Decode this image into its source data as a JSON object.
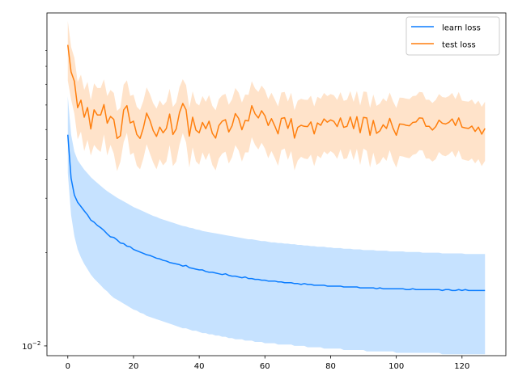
{
  "chart_data": {
    "type": "line",
    "yscale": "log",
    "xlim": [
      -6.35,
      133.35
    ],
    "ylim": [
      0.0093,
      0.119
    ],
    "x_ticks": [
      0,
      20,
      40,
      60,
      80,
      100,
      120
    ],
    "y_major_ticks": [
      {
        "value": 0.01,
        "label": "10",
        "exponent": "−2"
      }
    ],
    "y_minor_ticks": [
      0.02,
      0.03,
      0.04,
      0.05,
      0.06,
      0.07,
      0.08,
      0.09
    ],
    "legend_position": "top-right",
    "x": [
      0,
      1,
      2,
      3,
      4,
      5,
      6,
      7,
      8,
      9,
      10,
      11,
      12,
      13,
      14,
      15,
      16,
      17,
      18,
      19,
      20,
      21,
      22,
      23,
      24,
      25,
      26,
      27,
      28,
      29,
      30,
      31,
      32,
      33,
      34,
      35,
      36,
      37,
      38,
      39,
      40,
      41,
      42,
      43,
      44,
      45,
      46,
      47,
      48,
      49,
      50,
      51,
      52,
      53,
      54,
      55,
      56,
      57,
      58,
      59,
      60,
      61,
      62,
      63,
      64,
      65,
      66,
      67,
      68,
      69,
      70,
      71,
      72,
      73,
      74,
      75,
      76,
      77,
      78,
      79,
      80,
      81,
      82,
      83,
      84,
      85,
      86,
      87,
      88,
      89,
      90,
      91,
      92,
      93,
      94,
      95,
      96,
      97,
      98,
      99,
      100,
      101,
      102,
      103,
      104,
      105,
      106,
      107,
      108,
      109,
      110,
      111,
      112,
      113,
      114,
      115,
      116,
      117,
      118,
      119,
      120,
      121,
      122,
      123,
      124,
      125,
      126,
      127
    ],
    "series": [
      {
        "name": "learn loss",
        "color": "#0a7cff",
        "band_color": "#b3d8ff",
        "values": [
          0.0481,
          0.0348,
          0.0307,
          0.0291,
          0.0282,
          0.0273,
          0.0265,
          0.0255,
          0.0251,
          0.0245,
          0.0241,
          0.0236,
          0.023,
          0.0225,
          0.0224,
          0.022,
          0.0215,
          0.0214,
          0.021,
          0.0209,
          0.0205,
          0.0203,
          0.0201,
          0.0199,
          0.0197,
          0.0196,
          0.0194,
          0.0192,
          0.0191,
          0.0189,
          0.0188,
          0.0186,
          0.0185,
          0.0184,
          0.0183,
          0.0181,
          0.0182,
          0.0179,
          0.0178,
          0.0177,
          0.0176,
          0.0176,
          0.0174,
          0.0173,
          0.0173,
          0.0172,
          0.0171,
          0.017,
          0.0171,
          0.0169,
          0.0168,
          0.0168,
          0.0167,
          0.0166,
          0.0167,
          0.0165,
          0.0165,
          0.0164,
          0.0164,
          0.0163,
          0.0163,
          0.0162,
          0.0162,
          0.0162,
          0.0161,
          0.0161,
          0.016,
          0.016,
          0.016,
          0.0159,
          0.0159,
          0.0158,
          0.0159,
          0.0158,
          0.0158,
          0.0157,
          0.0157,
          0.0157,
          0.0157,
          0.0156,
          0.0156,
          0.0156,
          0.0156,
          0.0156,
          0.0155,
          0.0155,
          0.0155,
          0.0155,
          0.0155,
          0.0154,
          0.0154,
          0.0154,
          0.0154,
          0.0154,
          0.0153,
          0.0154,
          0.0153,
          0.0153,
          0.0153,
          0.0153,
          0.0153,
          0.0153,
          0.0153,
          0.0152,
          0.0152,
          0.0153,
          0.0152,
          0.0152,
          0.0152,
          0.0152,
          0.0152,
          0.0152,
          0.0152,
          0.0152,
          0.0151,
          0.0152,
          0.0152,
          0.0151,
          0.0151,
          0.0152,
          0.0151,
          0.0152,
          0.0151,
          0.0151,
          0.0151,
          0.0151,
          0.0151,
          0.0151
        ],
        "band_lower": [
          0.0362,
          0.0265,
          0.0226,
          0.0205,
          0.0193,
          0.0184,
          0.0177,
          0.017,
          0.0165,
          0.0161,
          0.0157,
          0.0153,
          0.015,
          0.0146,
          0.0143,
          0.0141,
          0.0139,
          0.0137,
          0.0135,
          0.0133,
          0.0131,
          0.013,
          0.0128,
          0.0127,
          0.0125,
          0.0124,
          0.0123,
          0.0122,
          0.0121,
          0.012,
          0.0119,
          0.0118,
          0.0117,
          0.0116,
          0.0115,
          0.0114,
          0.0114,
          0.0113,
          0.0112,
          0.0112,
          0.0111,
          0.011,
          0.011,
          0.0109,
          0.0109,
          0.0108,
          0.0108,
          0.0107,
          0.0107,
          0.0106,
          0.0106,
          0.0105,
          0.0105,
          0.0105,
          0.0104,
          0.0104,
          0.0104,
          0.0103,
          0.0103,
          0.0103,
          0.0102,
          0.0102,
          0.0102,
          0.0102,
          0.0101,
          0.0101,
          0.0101,
          0.0101,
          0.0101,
          0.01,
          0.01,
          0.01,
          0.01,
          0.0099,
          0.0099,
          0.0099,
          0.0099,
          0.0099,
          0.0098,
          0.0098,
          0.0098,
          0.0098,
          0.0098,
          0.0098,
          0.0097,
          0.0097,
          0.0097,
          0.0097,
          0.0097,
          0.0097,
          0.0097,
          0.0096,
          0.0096,
          0.0096,
          0.0096,
          0.0096,
          0.0096,
          0.0096,
          0.0096,
          0.0096,
          0.0095,
          0.0095,
          0.0095,
          0.0095,
          0.0095,
          0.0095,
          0.0095,
          0.0095,
          0.0095,
          0.0095,
          0.0095,
          0.0095,
          0.0095,
          0.0095,
          0.0094,
          0.0094,
          0.0094,
          0.0094,
          0.0094,
          0.0094,
          0.0094,
          0.0094,
          0.0094,
          0.0094,
          0.0094,
          0.0094,
          0.0094,
          0.0094
        ],
        "band_upper": [
          0.0639,
          0.0482,
          0.0424,
          0.0398,
          0.0384,
          0.0371,
          0.0361,
          0.0351,
          0.0343,
          0.0336,
          0.0329,
          0.0322,
          0.0316,
          0.0311,
          0.0306,
          0.0301,
          0.0297,
          0.0293,
          0.0289,
          0.0285,
          0.0281,
          0.0278,
          0.0275,
          0.0272,
          0.0269,
          0.0266,
          0.0263,
          0.0261,
          0.0258,
          0.0256,
          0.0254,
          0.0252,
          0.025,
          0.0248,
          0.0246,
          0.0244,
          0.0243,
          0.0241,
          0.024,
          0.0238,
          0.0237,
          0.0235,
          0.0234,
          0.0233,
          0.0232,
          0.0231,
          0.023,
          0.0229,
          0.0228,
          0.0227,
          0.0226,
          0.0225,
          0.0224,
          0.0223,
          0.0222,
          0.0221,
          0.0221,
          0.022,
          0.0219,
          0.0218,
          0.0218,
          0.0217,
          0.0216,
          0.0216,
          0.0215,
          0.0215,
          0.0214,
          0.0214,
          0.0213,
          0.0213,
          0.0212,
          0.0212,
          0.0211,
          0.0211,
          0.021,
          0.021,
          0.0209,
          0.0209,
          0.0209,
          0.0208,
          0.0208,
          0.0207,
          0.0207,
          0.0207,
          0.0206,
          0.0206,
          0.0206,
          0.0205,
          0.0205,
          0.0205,
          0.0204,
          0.0204,
          0.0204,
          0.0204,
          0.0203,
          0.0203,
          0.0203,
          0.0203,
          0.0202,
          0.0202,
          0.0202,
          0.0202,
          0.0202,
          0.0201,
          0.0201,
          0.0201,
          0.0201,
          0.0201,
          0.02,
          0.02,
          0.02,
          0.02,
          0.02,
          0.02,
          0.0199,
          0.0199,
          0.0199,
          0.0199,
          0.0199,
          0.0199,
          0.0199,
          0.0198,
          0.0198,
          0.0198,
          0.0198,
          0.0198,
          0.0198,
          0.0198
        ]
      },
      {
        "name": "test loss",
        "color": "#ff7f0e",
        "band_color": "#ffd9b8",
        "values": [
          0.0938,
          0.0767,
          0.0716,
          0.0588,
          0.0622,
          0.0548,
          0.0589,
          0.0502,
          0.0579,
          0.0557,
          0.0557,
          0.0602,
          0.0524,
          0.0551,
          0.0539,
          0.0468,
          0.0477,
          0.0578,
          0.0597,
          0.0525,
          0.0532,
          0.0482,
          0.0468,
          0.0506,
          0.0565,
          0.0535,
          0.0496,
          0.0475,
          0.0509,
          0.0488,
          0.0504,
          0.0561,
          0.0482,
          0.0502,
          0.0567,
          0.0607,
          0.0579,
          0.0476,
          0.0548,
          0.0498,
          0.0488,
          0.0527,
          0.0503,
          0.0532,
          0.0486,
          0.0469,
          0.0515,
          0.0532,
          0.0538,
          0.0491,
          0.0514,
          0.0563,
          0.0543,
          0.0499,
          0.0535,
          0.0533,
          0.0597,
          0.0562,
          0.0545,
          0.0575,
          0.0554,
          0.0515,
          0.0542,
          0.0514,
          0.0484,
          0.0543,
          0.0546,
          0.0504,
          0.0542,
          0.0469,
          0.0508,
          0.0516,
          0.0512,
          0.0511,
          0.0529,
          0.0484,
          0.0525,
          0.0516,
          0.0541,
          0.0528,
          0.0537,
          0.0531,
          0.0511,
          0.0545,
          0.0508,
          0.0512,
          0.0549,
          0.0503,
          0.055,
          0.0488,
          0.0547,
          0.0545,
          0.0479,
          0.0535,
          0.0486,
          0.0495,
          0.0518,
          0.0504,
          0.0543,
          0.0505,
          0.0479,
          0.0521,
          0.052,
          0.0516,
          0.0514,
          0.0527,
          0.0529,
          0.0545,
          0.0544,
          0.0512,
          0.0512,
          0.0498,
          0.0511,
          0.0536,
          0.0524,
          0.0521,
          0.0527,
          0.0541,
          0.0515,
          0.0545,
          0.0509,
          0.0506,
          0.0504,
          0.0513,
          0.0493,
          0.0509,
          0.0483,
          0.0504
        ],
        "band_lower": [
          0.0719,
          0.0626,
          0.0562,
          0.0465,
          0.0492,
          0.0426,
          0.0463,
          0.0412,
          0.0446,
          0.0432,
          0.0423,
          0.0482,
          0.0412,
          0.0446,
          0.0418,
          0.0367,
          0.0393,
          0.0455,
          0.0488,
          0.0414,
          0.0421,
          0.0382,
          0.0372,
          0.0403,
          0.0448,
          0.0418,
          0.0391,
          0.0372,
          0.0401,
          0.0383,
          0.0394,
          0.0445,
          0.0381,
          0.0394,
          0.0446,
          0.0487,
          0.0454,
          0.0377,
          0.0438,
          0.0395,
          0.0385,
          0.0422,
          0.0398,
          0.0421,
          0.0384,
          0.0369,
          0.0403,
          0.0418,
          0.0424,
          0.0388,
          0.0407,
          0.0445,
          0.0428,
          0.0394,
          0.0422,
          0.0422,
          0.0472,
          0.0446,
          0.0431,
          0.0453,
          0.0434,
          0.0404,
          0.0426,
          0.0405,
          0.0382,
          0.0429,
          0.0434,
          0.0399,
          0.0426,
          0.0369,
          0.0397,
          0.0408,
          0.0403,
          0.0401,
          0.0415,
          0.0381,
          0.0412,
          0.0404,
          0.0425,
          0.0416,
          0.0426,
          0.0418,
          0.0402,
          0.0431,
          0.0401,
          0.0404,
          0.0433,
          0.0398,
          0.0433,
          0.0384,
          0.0434,
          0.0427,
          0.0377,
          0.0421,
          0.0384,
          0.0391,
          0.0408,
          0.0396,
          0.0429,
          0.0397,
          0.0377,
          0.0411,
          0.0409,
          0.0406,
          0.0404,
          0.0414,
          0.0417,
          0.0429,
          0.0428,
          0.0403,
          0.0403,
          0.0394,
          0.0401,
          0.0423,
          0.0413,
          0.041,
          0.0416,
          0.0426,
          0.0406,
          0.0428,
          0.0401,
          0.0398,
          0.0396,
          0.0403,
          0.0389,
          0.0401,
          0.0381,
          0.0396
        ],
        "band_upper": [
          0.1121,
          0.0924,
          0.0853,
          0.0712,
          0.0752,
          0.0671,
          0.0713,
          0.0621,
          0.0705,
          0.0681,
          0.0681,
          0.0726,
          0.0641,
          0.0671,
          0.0656,
          0.0574,
          0.0588,
          0.0698,
          0.0721,
          0.0642,
          0.0648,
          0.0592,
          0.0578,
          0.0619,
          0.0684,
          0.0651,
          0.0608,
          0.0584,
          0.0621,
          0.0598,
          0.0615,
          0.0677,
          0.0591,
          0.0612,
          0.0685,
          0.0727,
          0.0696,
          0.0587,
          0.0664,
          0.0609,
          0.0598,
          0.0641,
          0.0614,
          0.0646,
          0.0596,
          0.0577,
          0.0627,
          0.0645,
          0.0652,
          0.0601,
          0.0626,
          0.0681,
          0.0658,
          0.0611,
          0.0649,
          0.0647,
          0.0716,
          0.0679,
          0.0661,
          0.0693,
          0.0671,
          0.0627,
          0.0657,
          0.0626,
          0.0594,
          0.0658,
          0.0661,
          0.0616,
          0.0657,
          0.0577,
          0.062,
          0.0628,
          0.0624,
          0.0623,
          0.0643,
          0.0594,
          0.0638,
          0.0628,
          0.0656,
          0.0641,
          0.0651,
          0.0645,
          0.0623,
          0.066,
          0.0619,
          0.0624,
          0.0665,
          0.0614,
          0.0666,
          0.0598,
          0.0663,
          0.0661,
          0.0587,
          0.0649,
          0.0596,
          0.0606,
          0.0631,
          0.0616,
          0.0658,
          0.0617,
          0.0587,
          0.0634,
          0.0633,
          0.0629,
          0.0627,
          0.0641,
          0.0643,
          0.0661,
          0.0659,
          0.0624,
          0.0624,
          0.0609,
          0.0623,
          0.0651,
          0.0637,
          0.0634,
          0.0641,
          0.0656,
          0.0627,
          0.0661,
          0.062,
          0.0617,
          0.0615,
          0.0625,
          0.0603,
          0.062,
          0.0592,
          0.0615
        ]
      }
    ]
  }
}
